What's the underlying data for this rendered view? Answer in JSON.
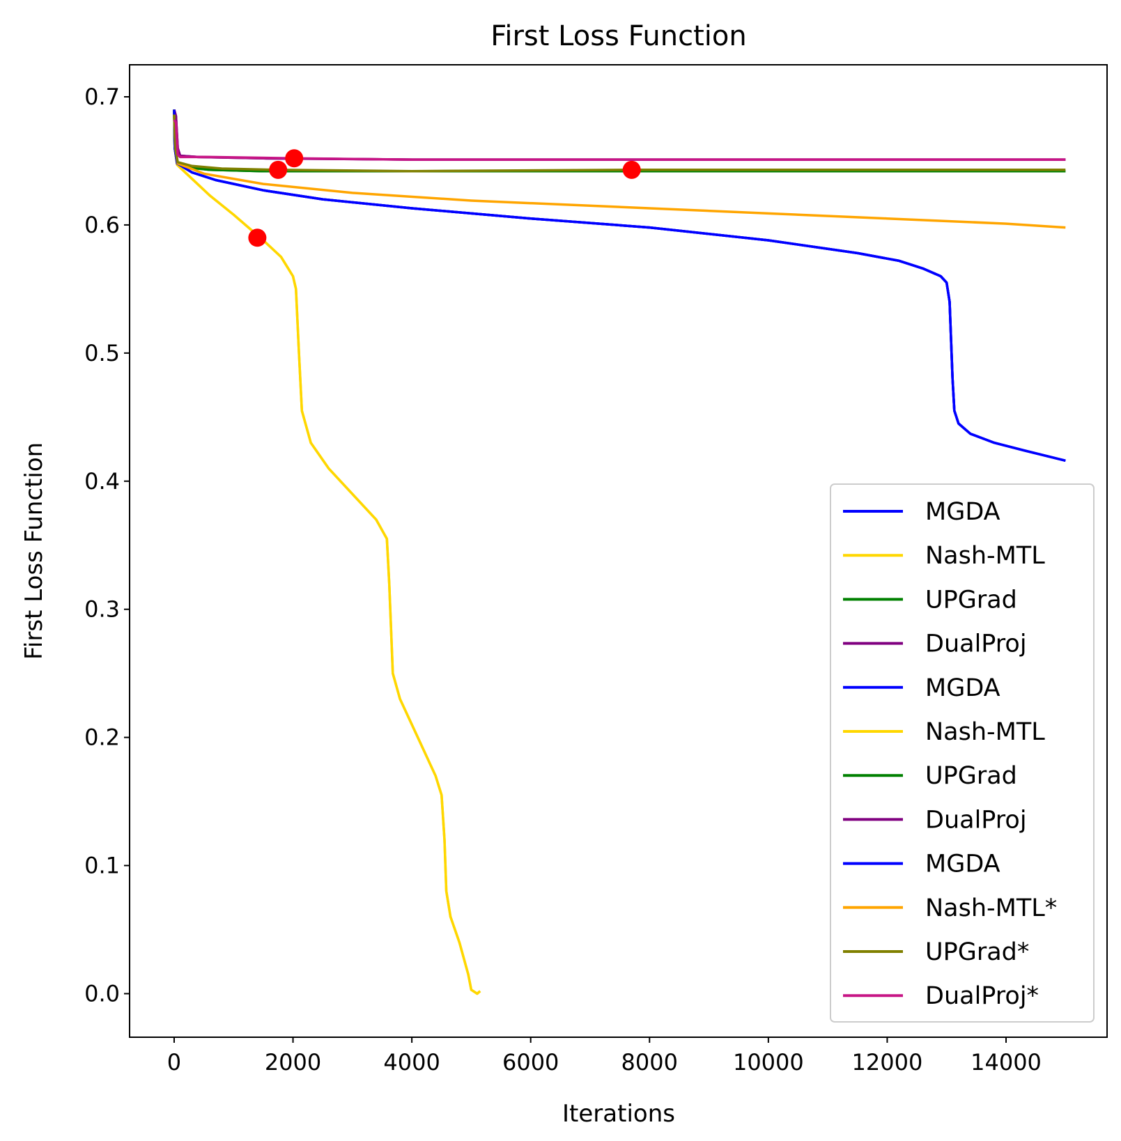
{
  "chart_data": {
    "type": "line",
    "title": "First Loss Function",
    "xlabel": "Iterations",
    "ylabel": "First Loss Function",
    "xlim": [
      -750,
      15700
    ],
    "ylim": [
      -0.034,
      0.725
    ],
    "xticks": [
      0,
      2000,
      4000,
      6000,
      8000,
      10000,
      12000,
      14000
    ],
    "yticks": [
      0.0,
      0.1,
      0.2,
      0.3,
      0.4,
      0.5,
      0.6,
      0.7
    ],
    "ytick_labels": [
      "0.0",
      "0.1",
      "0.2",
      "0.3",
      "0.4",
      "0.5",
      "0.6",
      "0.7"
    ],
    "grid": false,
    "legend_position": "lower-right",
    "series": [
      {
        "name": "MGDA",
        "color": "#0000ff",
        "points": [
          [
            0,
            0.69
          ],
          [
            10,
            0.66
          ],
          [
            50,
            0.648
          ],
          [
            300,
            0.641
          ],
          [
            700,
            0.635
          ],
          [
            1500,
            0.627
          ],
          [
            2500,
            0.62
          ],
          [
            4000,
            0.613
          ],
          [
            6000,
            0.605
          ],
          [
            8000,
            0.598
          ],
          [
            10000,
            0.588
          ],
          [
            11500,
            0.578
          ],
          [
            12200,
            0.572
          ],
          [
            12600,
            0.566
          ],
          [
            12900,
            0.56
          ],
          [
            13000,
            0.555
          ],
          [
            13050,
            0.54
          ],
          [
            13100,
            0.48
          ],
          [
            13130,
            0.455
          ],
          [
            13200,
            0.445
          ],
          [
            13400,
            0.437
          ],
          [
            13800,
            0.43
          ],
          [
            14300,
            0.424
          ],
          [
            15000,
            0.416
          ]
        ]
      },
      {
        "name": "Nash-MTL",
        "color": "#ffd700",
        "points": [
          [
            0,
            0.69
          ],
          [
            10,
            0.66
          ],
          [
            50,
            0.647
          ],
          [
            300,
            0.636
          ],
          [
            600,
            0.623
          ],
          [
            1000,
            0.608
          ],
          [
            1500,
            0.588
          ],
          [
            1800,
            0.575
          ],
          [
            2000,
            0.56
          ],
          [
            2050,
            0.55
          ],
          [
            2100,
            0.5
          ],
          [
            2150,
            0.455
          ],
          [
            2300,
            0.43
          ],
          [
            2600,
            0.41
          ],
          [
            3000,
            0.39
          ],
          [
            3400,
            0.37
          ],
          [
            3580,
            0.355
          ],
          [
            3620,
            0.32
          ],
          [
            3680,
            0.25
          ],
          [
            3800,
            0.23
          ],
          [
            4100,
            0.2
          ],
          [
            4400,
            0.17
          ],
          [
            4500,
            0.155
          ],
          [
            4550,
            0.12
          ],
          [
            4580,
            0.08
          ],
          [
            4650,
            0.06
          ],
          [
            4800,
            0.04
          ],
          [
            4950,
            0.015
          ],
          [
            5000,
            0.003
          ],
          [
            5100,
            0.0
          ],
          [
            5150,
            0.002
          ]
        ]
      },
      {
        "name": "UPGrad",
        "color": "#008000",
        "points": [
          [
            0,
            0.69
          ],
          [
            10,
            0.66
          ],
          [
            50,
            0.648
          ],
          [
            200,
            0.645
          ],
          [
            600,
            0.643
          ],
          [
            1500,
            0.642
          ],
          [
            3000,
            0.642
          ],
          [
            6000,
            0.642
          ],
          [
            15000,
            0.642
          ]
        ]
      },
      {
        "name": "DualProj",
        "color": "#800080",
        "points": [
          [
            0,
            0.69
          ],
          [
            30,
            0.685
          ],
          [
            60,
            0.66
          ],
          [
            100,
            0.654
          ],
          [
            400,
            0.653
          ],
          [
            1500,
            0.652
          ],
          [
            4000,
            0.651
          ],
          [
            15000,
            0.651
          ]
        ]
      },
      {
        "name": "MGDA",
        "color": "#0000ff",
        "points": [
          [
            0,
            0.69
          ],
          [
            10,
            0.66
          ],
          [
            50,
            0.648
          ],
          [
            300,
            0.641
          ],
          [
            700,
            0.635
          ],
          [
            1500,
            0.627
          ],
          [
            2500,
            0.62
          ],
          [
            4000,
            0.613
          ],
          [
            6000,
            0.605
          ],
          [
            8000,
            0.598
          ],
          [
            10000,
            0.588
          ],
          [
            11500,
            0.578
          ],
          [
            12200,
            0.572
          ],
          [
            12600,
            0.566
          ],
          [
            12900,
            0.56
          ],
          [
            13000,
            0.555
          ],
          [
            13050,
            0.54
          ],
          [
            13100,
            0.48
          ],
          [
            13130,
            0.455
          ],
          [
            13200,
            0.445
          ],
          [
            13400,
            0.437
          ],
          [
            13800,
            0.43
          ],
          [
            14300,
            0.424
          ],
          [
            15000,
            0.416
          ]
        ]
      },
      {
        "name": "Nash-MTL",
        "color": "#ffd700",
        "points": [
          [
            0,
            0.69
          ],
          [
            10,
            0.66
          ],
          [
            50,
            0.647
          ],
          [
            300,
            0.636
          ],
          [
            600,
            0.623
          ],
          [
            1000,
            0.608
          ],
          [
            1500,
            0.588
          ],
          [
            1800,
            0.575
          ],
          [
            2000,
            0.56
          ],
          [
            2050,
            0.55
          ],
          [
            2100,
            0.5
          ],
          [
            2150,
            0.455
          ],
          [
            2300,
            0.43
          ],
          [
            2600,
            0.41
          ],
          [
            3000,
            0.39
          ],
          [
            3400,
            0.37
          ],
          [
            3580,
            0.355
          ],
          [
            3620,
            0.32
          ],
          [
            3680,
            0.25
          ],
          [
            3800,
            0.23
          ],
          [
            4100,
            0.2
          ],
          [
            4400,
            0.17
          ],
          [
            4500,
            0.155
          ],
          [
            4550,
            0.12
          ],
          [
            4580,
            0.08
          ],
          [
            4650,
            0.06
          ],
          [
            4800,
            0.04
          ],
          [
            4950,
            0.015
          ],
          [
            5000,
            0.003
          ],
          [
            5100,
            0.0
          ],
          [
            5150,
            0.002
          ]
        ]
      },
      {
        "name": "UPGrad",
        "color": "#008000",
        "points": [
          [
            0,
            0.69
          ],
          [
            10,
            0.66
          ],
          [
            50,
            0.648
          ],
          [
            200,
            0.645
          ],
          [
            600,
            0.643
          ],
          [
            1500,
            0.642
          ],
          [
            3000,
            0.642
          ],
          [
            6000,
            0.642
          ],
          [
            15000,
            0.642
          ]
        ]
      },
      {
        "name": "DualProj",
        "color": "#800080",
        "points": [
          [
            0,
            0.69
          ],
          [
            30,
            0.685
          ],
          [
            60,
            0.66
          ],
          [
            100,
            0.654
          ],
          [
            400,
            0.653
          ],
          [
            1500,
            0.652
          ],
          [
            4000,
            0.651
          ],
          [
            15000,
            0.651
          ]
        ]
      },
      {
        "name": "MGDA",
        "color": "#0000ff",
        "points": [
          [
            0,
            0.69
          ],
          [
            10,
            0.66
          ],
          [
            50,
            0.648
          ],
          [
            300,
            0.641
          ],
          [
            700,
            0.635
          ],
          [
            1500,
            0.627
          ],
          [
            2500,
            0.62
          ],
          [
            4000,
            0.613
          ],
          [
            6000,
            0.605
          ],
          [
            8000,
            0.598
          ],
          [
            10000,
            0.588
          ],
          [
            11500,
            0.578
          ],
          [
            12200,
            0.572
          ],
          [
            12600,
            0.566
          ],
          [
            12900,
            0.56
          ],
          [
            13000,
            0.555
          ],
          [
            13050,
            0.54
          ],
          [
            13100,
            0.48
          ],
          [
            13130,
            0.455
          ],
          [
            13200,
            0.445
          ],
          [
            13400,
            0.437
          ],
          [
            13800,
            0.43
          ],
          [
            14300,
            0.424
          ],
          [
            15000,
            0.416
          ]
        ]
      },
      {
        "name": "Nash-MTL*",
        "color": "#ffa500",
        "points": [
          [
            0,
            0.686
          ],
          [
            20,
            0.66
          ],
          [
            60,
            0.648
          ],
          [
            500,
            0.64
          ],
          [
            1500,
            0.632
          ],
          [
            3000,
            0.625
          ],
          [
            5000,
            0.619
          ],
          [
            8000,
            0.613
          ],
          [
            10000,
            0.609
          ],
          [
            12000,
            0.605
          ],
          [
            14000,
            0.601
          ],
          [
            15000,
            0.598
          ]
        ]
      },
      {
        "name": "UPGrad*",
        "color": "#808000",
        "points": [
          [
            0,
            0.686
          ],
          [
            20,
            0.66
          ],
          [
            60,
            0.649
          ],
          [
            300,
            0.646
          ],
          [
            800,
            0.644
          ],
          [
            1700,
            0.643
          ],
          [
            4000,
            0.642
          ],
          [
            7700,
            0.643
          ],
          [
            15000,
            0.643
          ]
        ]
      },
      {
        "name": "DualProj*",
        "color": "#c71585",
        "points": [
          [
            0,
            0.682
          ],
          [
            30,
            0.68
          ],
          [
            60,
            0.655
          ],
          [
            100,
            0.653
          ],
          [
            600,
            0.653
          ],
          [
            2000,
            0.652
          ],
          [
            4000,
            0.651
          ],
          [
            15000,
            0.651
          ]
        ]
      }
    ],
    "markers": {
      "color": "#ff0000",
      "points": [
        [
          1400,
          0.59
        ],
        [
          1750,
          0.643
        ],
        [
          2020,
          0.652
        ],
        [
          7700,
          0.643
        ]
      ]
    }
  }
}
